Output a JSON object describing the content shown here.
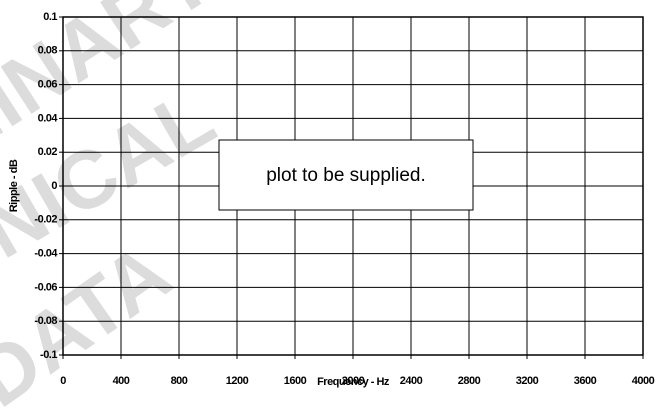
{
  "chart_data": {
    "type": "line",
    "xlabel": "Frequency - Hz",
    "ylabel": "Ripple - dB",
    "xlim": [
      0,
      4000
    ],
    "xticks": [
      0,
      400,
      800,
      1200,
      1600,
      2000,
      2400,
      2800,
      3200,
      3600,
      4000
    ],
    "ylim": [
      -0.1,
      0.1
    ],
    "yticks": [
      0.1,
      0.08,
      0.06,
      0.04,
      0.02,
      0,
      -0.02,
      -0.04,
      -0.06,
      -0.08,
      -0.1
    ],
    "grid": true,
    "annotation": "plot to be supplied.",
    "watermark": [
      "PRELIMINARY",
      "TECHNICAL",
      "DATA"
    ]
  }
}
